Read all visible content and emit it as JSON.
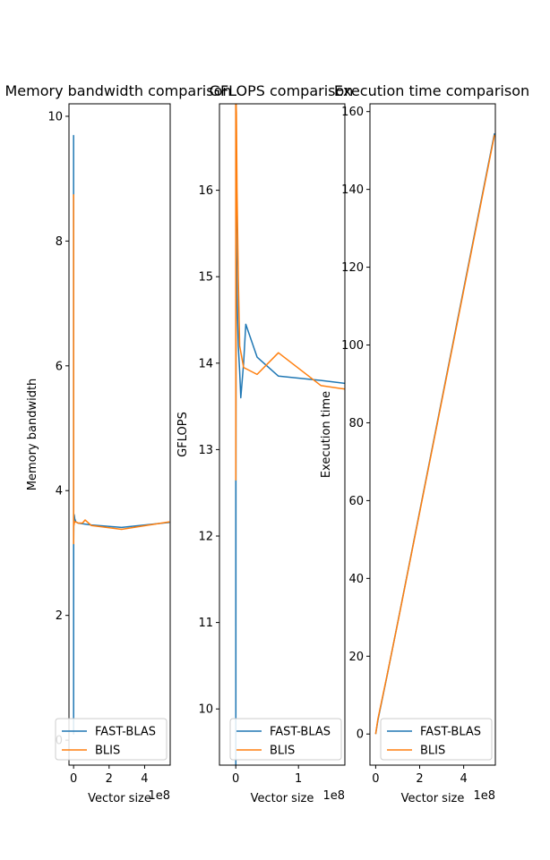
{
  "chart_data": [
    {
      "type": "line",
      "title": "Memory bandwidth comparison",
      "xlabel": "Vector size",
      "ylabel": "Memory bandwidth",
      "x_offset_text": "1e8",
      "xlim": [
        -0.26,
        5.44
      ],
      "ylim": [
        -0.4,
        10.2
      ],
      "xticks": [
        0,
        2,
        4
      ],
      "yticks": [
        0,
        2,
        4,
        6,
        8,
        10
      ],
      "legend": "lower right",
      "series": [
        {
          "name": "FAST-BLAS",
          "color": "#1f77b4",
          "x": [
            0.0001,
            0.00125,
            0.0025,
            0.005,
            0.01,
            0.02,
            0.04,
            0.0625,
            0.125,
            0.25,
            0.5,
            1.0,
            2.7,
            5.4
          ],
          "y": [
            9.7,
            0.1,
            2.1,
            3.2,
            3.4,
            3.62,
            3.6,
            3.55,
            3.5,
            3.48,
            3.47,
            3.45,
            3.41,
            3.49
          ]
        },
        {
          "name": "BLIS",
          "color": "#ff7f0e",
          "x": [
            0.0001,
            0.00125,
            0.0025,
            0.005,
            0.01,
            0.02,
            0.04,
            0.0625,
            0.125,
            0.25,
            0.5,
            0.65,
            1.0,
            2.7,
            5.4
          ],
          "y": [
            8.75,
            4.6,
            3.15,
            3.55,
            3.5,
            3.45,
            3.48,
            3.5,
            3.5,
            3.48,
            3.48,
            3.53,
            3.44,
            3.38,
            3.5
          ]
        }
      ]
    },
    {
      "type": "line",
      "title": "GFLOPS comparison",
      "xlabel": "Vector size",
      "ylabel": "GFLOPS",
      "x_offset_text": "1e8",
      "xlim": [
        -0.26,
        1.74
      ],
      "ylim": [
        9.35,
        17.0
      ],
      "xticks": [
        0,
        1
      ],
      "yticks": [
        10,
        11,
        12,
        13,
        14,
        15,
        16
      ],
      "legend": "lower right",
      "series": [
        {
          "name": "FAST-BLAS",
          "color": "#1f77b4",
          "x": [
            0.0001,
            0.00125,
            0.0025,
            0.005,
            0.01,
            0.02,
            0.04,
            0.0625,
            0.08,
            0.125,
            0.16,
            0.34,
            0.68,
            1.36,
            2.7
          ],
          "y": [
            17.0,
            9.35,
            12.65,
            17.0,
            15.5,
            14.8,
            14.2,
            13.9,
            13.6,
            14.0,
            14.45,
            14.07,
            13.85,
            13.8,
            13.68
          ]
        },
        {
          "name": "BLIS",
          "color": "#ff7f0e",
          "x": [
            0.0001,
            0.00125,
            0.0025,
            0.005,
            0.01,
            0.02,
            0.04,
            0.0625,
            0.125,
            0.34,
            0.68,
            1.36,
            2.7
          ],
          "y": [
            17.0,
            12.65,
            13.5,
            17.0,
            16.9,
            16.0,
            15.0,
            14.2,
            13.95,
            13.87,
            14.12,
            13.74,
            13.6
          ]
        }
      ]
    },
    {
      "type": "line",
      "title": "Execution time comparison",
      "xlabel": "Vector size",
      "ylabel": "Execution time",
      "x_offset_text": "1e8",
      "xlim": [
        -0.26,
        5.44
      ],
      "ylim": [
        -8.0,
        162.0
      ],
      "xticks": [
        0,
        2,
        4
      ],
      "yticks": [
        0,
        20,
        40,
        60,
        80,
        100,
        120,
        140,
        160
      ],
      "legend": "lower right",
      "series": [
        {
          "name": "FAST-BLAS",
          "color": "#1f77b4",
          "x": [
            0.0,
            0.1,
            0.5,
            1.0,
            2.0,
            3.0,
            4.0,
            5.4
          ],
          "y": [
            0.0,
            3.5,
            14.5,
            28.6,
            57.2,
            85.8,
            114.4,
            154.4
          ]
        },
        {
          "name": "BLIS",
          "color": "#ff7f0e",
          "x": [
            0.0,
            0.1,
            0.5,
            1.0,
            2.0,
            3.0,
            4.0,
            5.4
          ],
          "y": [
            0.0,
            3.8,
            14.6,
            28.5,
            57.0,
            85.5,
            114.0,
            154.0
          ]
        }
      ]
    }
  ]
}
